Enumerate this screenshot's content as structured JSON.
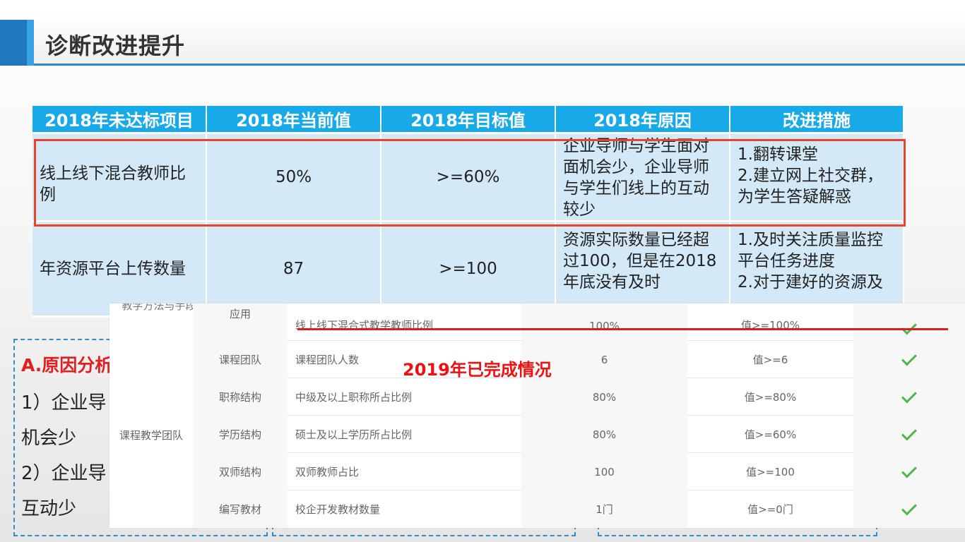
{
  "header": {
    "title": "诊断改进提升"
  },
  "main_table": {
    "columns": [
      "2018年未达标项目",
      "2018年当前值",
      "2018年目标值",
      "2018年原因",
      "改进措施"
    ],
    "rows": [
      {
        "item": "线上线下混合教师比例",
        "current": "50%",
        "target": ">=60%",
        "reason": "企业导师与学生面对面机会少，企业导师与学生们线上的互动较少",
        "measures": "1.翻转课堂\n2.建立网上社交群，为学生答疑解惑"
      },
      {
        "item": "年资源平台上传数量",
        "current": "87",
        "target": ">=100",
        "reason": "资源实际数量已经超过100，但是在2018年底没有及时",
        "measures": "1.及时关注质量监控平台任务进度\n2.对于建好的资源及"
      }
    ]
  },
  "analysis": {
    "title": "A.原因分析",
    "lines": [
      "1）企业导",
      "机会少",
      "2）企业导",
      "互动少"
    ]
  },
  "overlay": {
    "label": "2019年已完成情况",
    "clipped_text": "教学方法与手段",
    "group_label": "课程教学团队",
    "rows": [
      {
        "category": "应用",
        "indicator": "线上线下混合式教学教师比例",
        "value": "100%",
        "standard": "值>=100%"
      },
      {
        "category": "课程团队",
        "indicator": "课程团队人数",
        "value": "6",
        "standard": "值>=6"
      },
      {
        "category": "职称结构",
        "indicator": "中级及以上职称所占比例",
        "value": "80%",
        "standard": "值>=80%"
      },
      {
        "category": "学历结构",
        "indicator": "硕士及以上学历所占比例",
        "value": "80%",
        "standard": "值>=60%"
      },
      {
        "category": "双师结构",
        "indicator": "双师教师占比",
        "value": "100",
        "standard": "值>=100"
      },
      {
        "category": "编写教材",
        "indicator": "校企开发教材数量",
        "value": "1门",
        "standard": "值>=0门"
      }
    ]
  },
  "colors": {
    "header_blue": "#17a9e8",
    "cell_blue": "#d4e9f7",
    "highlight_red": "#e8442a",
    "check_green": "#4cb84c"
  }
}
